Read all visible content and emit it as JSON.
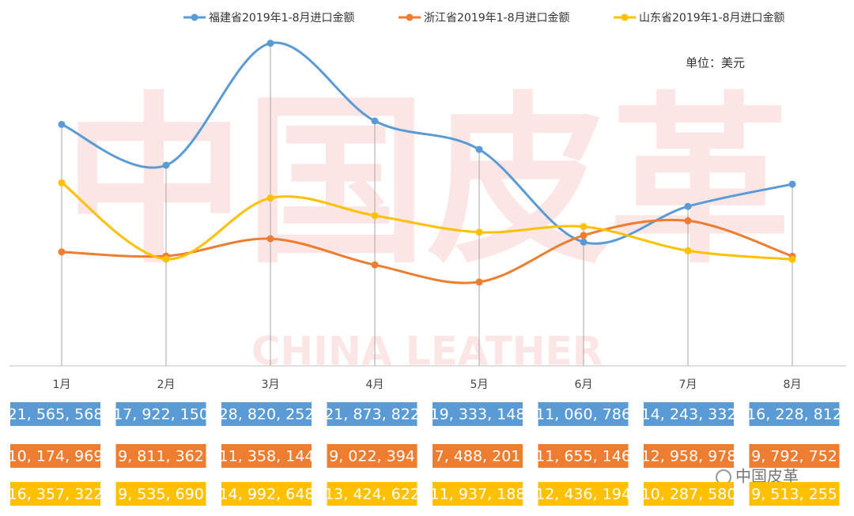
{
  "chart_data": {
    "type": "line",
    "unit_note": "单位：美元",
    "watermark": {
      "cn": "中国皮革",
      "en": "CHINA LEATHER"
    },
    "logo_text": "中国皮革",
    "categories": [
      "1月",
      "2月",
      "3月",
      "4月",
      "5月",
      "6月",
      "7月",
      "8月"
    ],
    "ylim": [
      0,
      30000000
    ],
    "drop_lines": true,
    "legend": "top",
    "series": [
      {
        "name": "福建省2019年1-8月进口金额",
        "color": "#5b9bd5",
        "values": [
          21565568,
          17922150,
          28820252,
          21873822,
          19333148,
          11060786,
          14243332,
          16228812
        ],
        "value_labels": [
          "21, 565, 568",
          "17, 922, 150",
          "28, 820, 252",
          "21, 873, 822",
          "19, 333, 148",
          "11, 060, 786",
          "14, 243, 332",
          "16, 228, 812"
        ]
      },
      {
        "name": "浙江省2019年1-8月进口金额",
        "color": "#ed7d31",
        "values": [
          10174969,
          9811362,
          11358144,
          9022394,
          7488201,
          11655146,
          12958978,
          9792752
        ],
        "value_labels": [
          "10, 174, 969",
          "9, 811, 362",
          "11, 358, 144",
          "9, 022, 394",
          "7, 488, 201",
          "11, 655, 146",
          "12, 958, 978",
          "9, 792, 752"
        ]
      },
      {
        "name": "山东省2019年1-8月进口金额",
        "color": "#ffc000",
        "values": [
          16357322,
          9535690,
          14992648,
          13424622,
          11937188,
          12436194,
          10287580,
          9513255
        ],
        "value_labels": [
          "16, 357, 322",
          "9, 535, 690",
          "14, 992, 648",
          "13, 424, 622",
          "11, 937, 188",
          "12, 436, 194",
          "10, 287, 580",
          "9, 513, 255"
        ]
      }
    ]
  }
}
